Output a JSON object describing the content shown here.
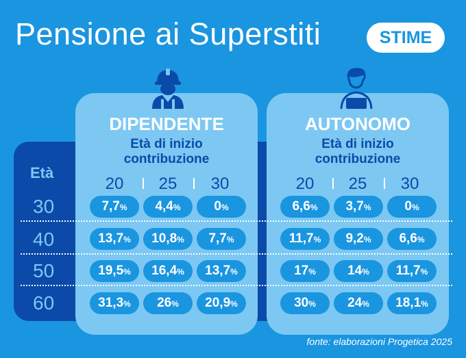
{
  "title": "Pensione ai Superstiti",
  "badge": "STIME",
  "eta_label": "Età",
  "ages": [
    "30",
    "40",
    "50",
    "60"
  ],
  "source": "fonte: elaborazioni Progetica 2025",
  "percent_sign": "%",
  "colors": {
    "background": "#1a95e0",
    "panel": "#7cc8f3",
    "band": "#0b4aa8",
    "pill": "#1a95e0"
  },
  "panels": [
    {
      "title": "DIPENDENTE",
      "sub1": "Età di inizio",
      "sub2": "contribuzione",
      "icon": "worker-helmet-icon",
      "columns": [
        "20",
        "25",
        "30"
      ],
      "rows": [
        [
          "7,7",
          "4,4",
          "0"
        ],
        [
          "13,7",
          "10,8",
          "7,7"
        ],
        [
          "19,5",
          "16,4",
          "13,7"
        ],
        [
          "31,3",
          "26",
          "20,9"
        ]
      ]
    },
    {
      "title": "AUTONOMO",
      "sub1": "Età di inizio",
      "sub2": "contribuzione",
      "icon": "laptop-person-icon",
      "columns": [
        "20",
        "25",
        "30"
      ],
      "rows": [
        [
          "6,6",
          "3,7",
          "0"
        ],
        [
          "11,7",
          "9,2",
          "6,6"
        ],
        [
          "17",
          "14",
          "11,7"
        ],
        [
          "30",
          "24",
          "18,1"
        ]
      ]
    }
  ]
}
